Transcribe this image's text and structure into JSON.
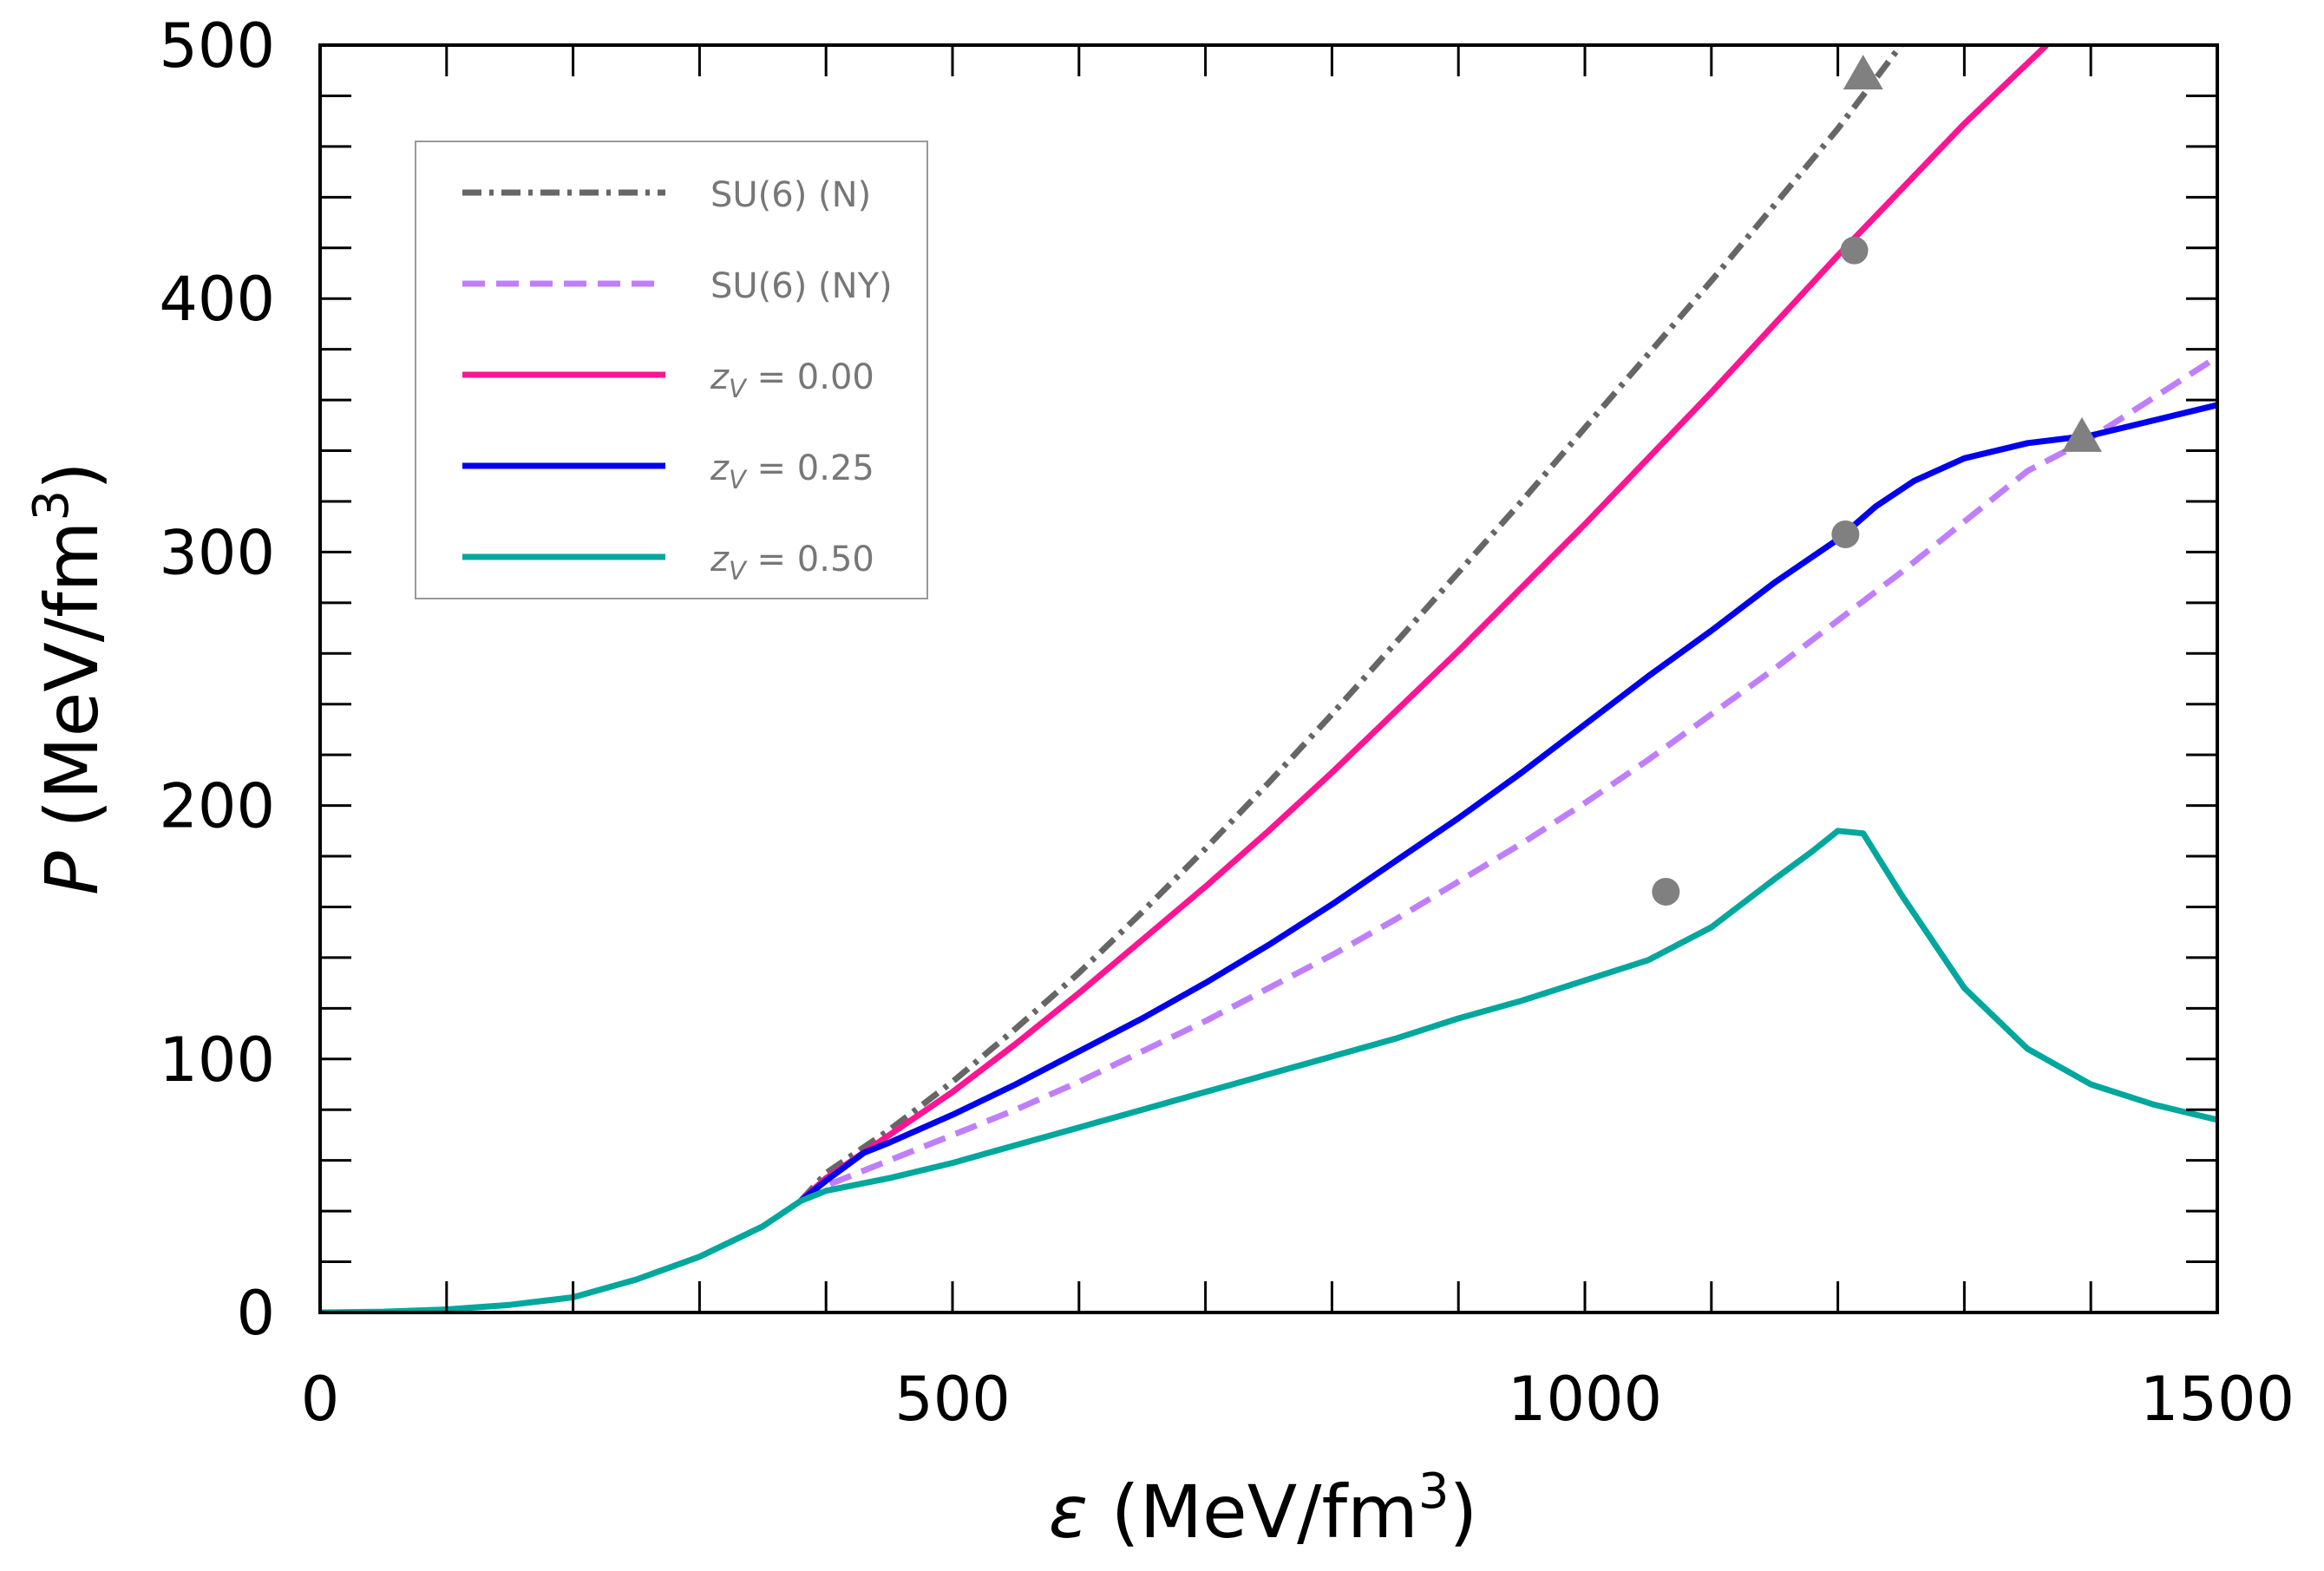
{
  "chart_data": {
    "type": "line",
    "title": "",
    "xlabel": {
      "symbol": "ε",
      "unit": "(MeV/fm",
      "sup": "3",
      "close": ")"
    },
    "ylabel": {
      "symbol": "P",
      "unit": "(MeV/fm",
      "sup": "3",
      "close": ")"
    },
    "xlim": [
      0,
      1500
    ],
    "ylim": [
      0,
      500
    ],
    "x_major_ticks": [
      0,
      500,
      1000,
      1500
    ],
    "x_minor_ticks": [
      100,
      200,
      300,
      400,
      600,
      700,
      800,
      900,
      1100,
      1200,
      1300,
      1400
    ],
    "y_major_ticks": [
      0,
      100,
      200,
      300,
      400,
      500
    ],
    "y_minor_ticks": [
      20,
      40,
      60,
      80,
      120,
      140,
      160,
      180,
      220,
      240,
      260,
      280,
      320,
      340,
      360,
      380,
      420,
      440,
      460,
      480
    ],
    "x_tick_labels": [
      "0",
      "500",
      "1000",
      "1500"
    ],
    "y_tick_labels": [
      "0",
      "100",
      "200",
      "300",
      "400",
      "500"
    ],
    "grid": false,
    "legend_position": "upper-left",
    "series": [
      {
        "name": "SU(6) (N)",
        "label_main": "SU(6) (N)",
        "label_sub": "",
        "label_suffix": "",
        "color": "#666666",
        "dash": "dashdot",
        "x": [
          380,
          400,
          450,
          500,
          550,
          600,
          650,
          700,
          750,
          800,
          850,
          900,
          950,
          1000,
          1050,
          1100,
          1150,
          1200,
          1250
        ],
        "y": [
          44,
          55,
          72,
          91,
          112,
          134,
          158,
          183,
          209,
          236,
          264,
          292,
          320,
          349,
          378,
          407,
          437,
          467,
          500
        ]
      },
      {
        "name": "SU(6) (NY)",
        "label_main": "SU(6) (NY)",
        "label_sub": "",
        "label_suffix": "",
        "color": "#bf7ffd",
        "dash": "dashed",
        "x": [
          380,
          400,
          450,
          500,
          550,
          600,
          650,
          700,
          750,
          800,
          850,
          900,
          950,
          1000,
          1050,
          1100,
          1150,
          1200,
          1250,
          1300,
          1350,
          1400,
          1450,
          1500
        ],
        "y": [
          44,
          50,
          60,
          70,
          80,
          91,
          103,
          115,
          128,
          141,
          155,
          170,
          185,
          201,
          218,
          236,
          254,
          273,
          292,
          312,
          332,
          345,
          361,
          377
        ]
      },
      {
        "name": "z_V = 0.00",
        "label_main": "z",
        "label_sub": "V",
        "label_suffix": " = 0.00",
        "color": "#ff1493",
        "dash": "solid",
        "x": [
          380,
          400,
          450,
          500,
          550,
          600,
          650,
          700,
          750,
          800,
          850,
          900,
          950,
          1000,
          1050,
          1100,
          1150,
          1200,
          1250,
          1300,
          1365
        ],
        "y": [
          44,
          53,
          70,
          87,
          106,
          126,
          147,
          168,
          190,
          213,
          237,
          261,
          286,
          311,
          337,
          363,
          390,
          417,
          443,
          469,
          500
        ]
      },
      {
        "name": "z_V = 0.25",
        "label_main": "z",
        "label_sub": "V",
        "label_suffix": " = 0.25",
        "color": "#0000ee",
        "dash": "solid",
        "x": [
          380,
          400,
          430,
          450,
          500,
          550,
          600,
          650,
          700,
          750,
          800,
          850,
          900,
          950,
          1000,
          1050,
          1100,
          1150,
          1200,
          1230,
          1260,
          1300,
          1350,
          1400,
          1450,
          1500
        ],
        "y": [
          44,
          52,
          63,
          67,
          78,
          90,
          103,
          116,
          130,
          145,
          161,
          178,
          195,
          213,
          232,
          251,
          269,
          288,
          305,
          318,
          328,
          337,
          343,
          346,
          352,
          358
        ]
      },
      {
        "name": "z_V = 0.50",
        "label_main": "z",
        "label_sub": "V",
        "label_suffix": " = 0.50",
        "color": "#00a79d",
        "dash": "solid",
        "x": [
          0,
          50,
          100,
          150,
          200,
          250,
          300,
          350,
          380,
          400,
          450,
          500,
          550,
          600,
          650,
          700,
          750,
          800,
          850,
          900,
          950,
          1000,
          1050,
          1100,
          1150,
          1180,
          1200,
          1220,
          1250,
          1300,
          1350,
          1400,
          1450,
          1500
        ],
        "y": [
          0,
          0.3,
          1.2,
          3,
          6,
          13,
          22,
          34,
          44,
          48,
          53,
          59,
          66,
          73,
          80,
          87,
          94,
          101,
          108,
          116,
          123,
          131,
          139,
          152,
          171,
          182,
          190,
          189,
          165,
          128,
          104,
          90,
          82,
          76
        ]
      }
    ],
    "markers": [
      {
        "shape": "triangle",
        "x": 1220,
        "y": 488,
        "color": "#808080"
      },
      {
        "shape": "circle",
        "x": 1213,
        "y": 419,
        "color": "#808080"
      },
      {
        "shape": "circle",
        "x": 1206,
        "y": 307,
        "color": "#808080"
      },
      {
        "shape": "triangle",
        "x": 1393,
        "y": 345,
        "color": "#808080"
      },
      {
        "shape": "circle",
        "x": 1064,
        "y": 166,
        "color": "#808080"
      }
    ]
  }
}
